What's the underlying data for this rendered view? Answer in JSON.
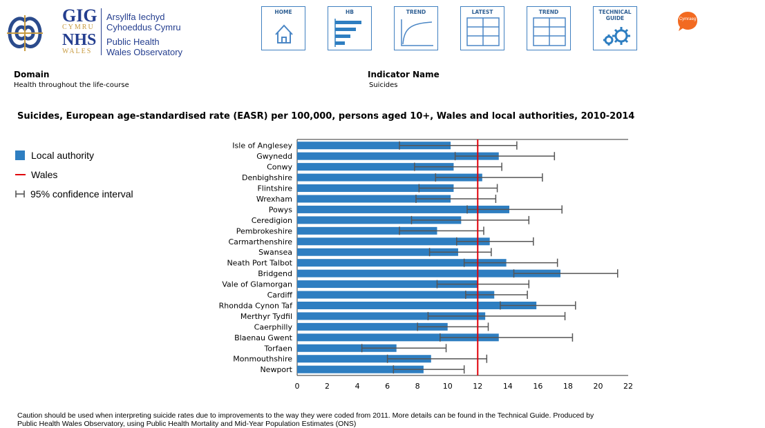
{
  "header": {
    "logo": {
      "gig": "GIG",
      "cymru": "CYMRU",
      "nhs": "NHS",
      "wales": "WALES",
      "welsh_name_1": "Arsyllfa Iechyd",
      "welsh_name_2": "Cyhoeddus Cymru",
      "english_name_1": "Public Health",
      "english_name_2": "Wales Observatory"
    },
    "nav": [
      {
        "label": "HOME",
        "icon": "home-icon"
      },
      {
        "label": "HB",
        "icon": "bar-chart-icon"
      },
      {
        "label": "TREND",
        "icon": "trend-curve-icon"
      },
      {
        "label": "LATEST",
        "icon": "table-icon"
      },
      {
        "label": "TREND",
        "icon": "table-icon"
      },
      {
        "label": "TECHNICAL GUIDE",
        "icon": "gears-icon"
      }
    ],
    "language_button": "Cymraeg"
  },
  "meta": {
    "domain_label": "Domain",
    "domain_value": "Health throughout the life-course",
    "indicator_label": "Indicator Name",
    "indicator_value": "Suicides"
  },
  "legend": {
    "local_authority": "Local authority",
    "wales": "Wales",
    "ci": "95% confidence interval"
  },
  "colors": {
    "bar": "#2e7ec1",
    "wales_line": "#e0000a",
    "ci": "#555555",
    "nav_border": "#3f7fc0",
    "lang_bubble": "#f26a21"
  },
  "chart_data": {
    "type": "bar",
    "orientation": "horizontal",
    "title": "Suicides, European age-standardised rate (EASR) per 100,000, persons aged 10+, Wales and local authorities, 2010-2014",
    "xlim": [
      0,
      22
    ],
    "x_ticks": [
      0,
      2,
      4,
      6,
      8,
      10,
      12,
      14,
      16,
      18,
      20,
      22
    ],
    "wales_value": 12.0,
    "categories": [
      "Isle of Anglesey",
      "Gwynedd",
      "Conwy",
      "Denbighshire",
      "Flintshire",
      "Wrexham",
      "Powys",
      "Ceredigion",
      "Pembrokeshire",
      "Carmarthenshire",
      "Swansea",
      "Neath Port Talbot",
      "Bridgend",
      "Vale of Glamorgan",
      "Cardiff",
      "Rhondda Cynon Taf",
      "Merthyr Tydfil",
      "Caerphilly",
      "Blaenau Gwent",
      "Torfaen",
      "Monmouthshire",
      "Newport"
    ],
    "values": [
      10.2,
      13.4,
      10.4,
      12.3,
      10.4,
      10.2,
      14.1,
      10.9,
      9.3,
      12.8,
      10.7,
      13.9,
      17.5,
      12.0,
      13.1,
      15.9,
      12.5,
      10.0,
      13.4,
      6.6,
      8.9,
      8.4
    ],
    "ci_lower": [
      6.8,
      10.5,
      7.8,
      9.2,
      8.1,
      7.9,
      11.3,
      7.6,
      6.8,
      10.6,
      8.8,
      11.1,
      14.4,
      9.3,
      11.2,
      13.5,
      8.7,
      8.0,
      9.5,
      4.3,
      6.0,
      6.4
    ],
    "ci_upper": [
      14.6,
      17.1,
      13.6,
      16.3,
      13.3,
      13.2,
      17.6,
      15.4,
      12.4,
      15.7,
      12.9,
      17.3,
      21.3,
      15.4,
      15.3,
      18.5,
      17.8,
      12.7,
      18.3,
      9.9,
      12.6,
      11.1
    ]
  },
  "caption": {
    "line1": "Caution should be used when interpreting suicide rates due to improvements to the way they were coded from 2011.  More details can be found in the Technical Guide.  Produced by",
    "line2": "Public Health Wales Observatory, using Public Health Mortality and Mid-Year Population Estimates (ONS)"
  }
}
